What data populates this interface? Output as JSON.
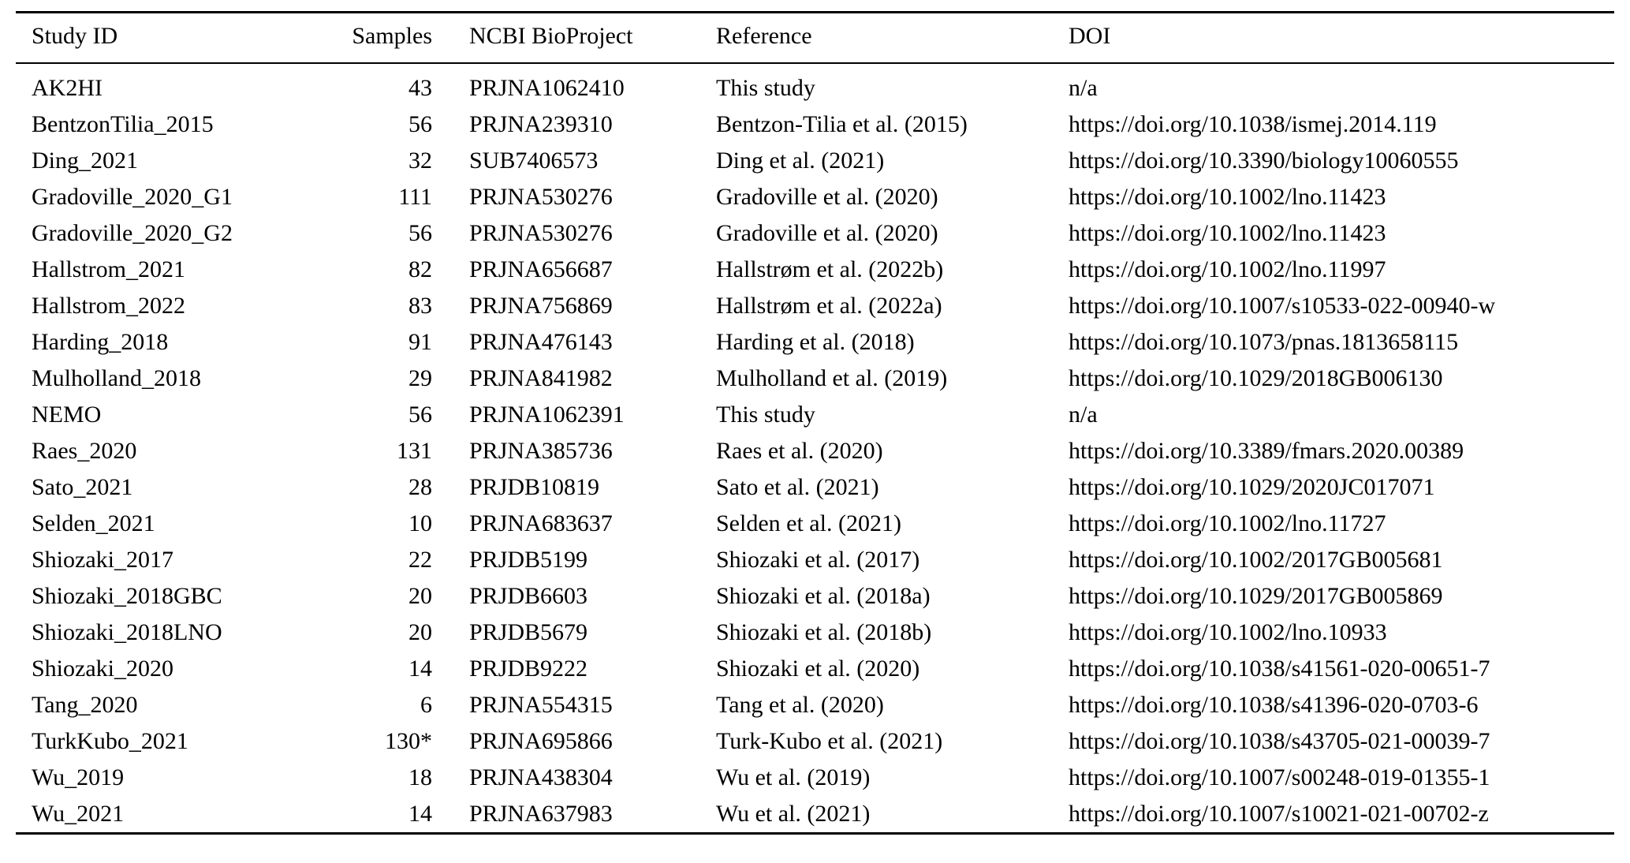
{
  "table": {
    "columns": [
      {
        "key": "study_id",
        "label": "Study ID",
        "align": "left"
      },
      {
        "key": "samples",
        "label": "Samples",
        "align": "right"
      },
      {
        "key": "bioproject",
        "label": "NCBI BioProject",
        "align": "left"
      },
      {
        "key": "reference",
        "label": "Reference",
        "align": "left"
      },
      {
        "key": "doi",
        "label": "DOI",
        "align": "left"
      }
    ],
    "rows": [
      {
        "study_id": "AK2HI",
        "samples": "43",
        "bioproject": "PRJNA1062410",
        "reference": "This study",
        "doi": "n/a"
      },
      {
        "study_id": "BentzonTilia_2015",
        "samples": "56",
        "bioproject": "PRJNA239310",
        "reference": "Bentzon-Tilia et al. (2015)",
        "doi": "https://doi.org/10.1038/ismej.2014.119"
      },
      {
        "study_id": "Ding_2021",
        "samples": "32",
        "bioproject": "SUB7406573",
        "reference": "Ding et al. (2021)",
        "doi": "https://doi.org/10.3390/biology10060555"
      },
      {
        "study_id": "Gradoville_2020_G1",
        "samples": "111",
        "bioproject": "PRJNA530276",
        "reference": "Gradoville et al. (2020)",
        "doi": "https://doi.org/10.1002/lno.11423"
      },
      {
        "study_id": "Gradoville_2020_G2",
        "samples": "56",
        "bioproject": "PRJNA530276",
        "reference": "Gradoville et al. (2020)",
        "doi": "https://doi.org/10.1002/lno.11423"
      },
      {
        "study_id": "Hallstrom_2021",
        "samples": "82",
        "bioproject": "PRJNA656687",
        "reference": "Hallstrøm et al. (2022b)",
        "doi": "https://doi.org/10.1002/lno.11997"
      },
      {
        "study_id": "Hallstrom_2022",
        "samples": "83",
        "bioproject": "PRJNA756869",
        "reference": "Hallstrøm et al. (2022a)",
        "doi": "https://doi.org/10.1007/s10533-022-00940-w"
      },
      {
        "study_id": "Harding_2018",
        "samples": "91",
        "bioproject": "PRJNA476143",
        "reference": "Harding et al. (2018)",
        "doi": "https://doi.org/10.1073/pnas.1813658115"
      },
      {
        "study_id": "Mulholland_2018",
        "samples": "29",
        "bioproject": "PRJNA841982",
        "reference": "Mulholland et al. (2019)",
        "doi": "https://doi.org/10.1029/2018GB006130"
      },
      {
        "study_id": "NEMO",
        "samples": "56",
        "bioproject": "PRJNA1062391",
        "reference": "This study",
        "doi": "n/a"
      },
      {
        "study_id": "Raes_2020",
        "samples": "131",
        "bioproject": "PRJNA385736",
        "reference": "Raes et al. (2020)",
        "doi": "https://doi.org/10.3389/fmars.2020.00389"
      },
      {
        "study_id": "Sato_2021",
        "samples": "28",
        "bioproject": "PRJDB10819",
        "reference": "Sato et al. (2021)",
        "doi": "https://doi.org/10.1029/2020JC017071"
      },
      {
        "study_id": "Selden_2021",
        "samples": "10",
        "bioproject": "PRJNA683637",
        "reference": "Selden et al. (2021)",
        "doi": "https://doi.org/10.1002/lno.11727"
      },
      {
        "study_id": "Shiozaki_2017",
        "samples": "22",
        "bioproject": "PRJDB5199",
        "reference": "Shiozaki et al. (2017)",
        "doi": "https://doi.org/10.1002/2017GB005681"
      },
      {
        "study_id": "Shiozaki_2018GBC",
        "samples": "20",
        "bioproject": "PRJDB6603",
        "reference": "Shiozaki et al. (2018a)",
        "doi": "https://doi.org/10.1029/2017GB005869"
      },
      {
        "study_id": "Shiozaki_2018LNO",
        "samples": "20",
        "bioproject": "PRJDB5679",
        "reference": "Shiozaki et al. (2018b)",
        "doi": "https://doi.org/10.1002/lno.10933"
      },
      {
        "study_id": "Shiozaki_2020",
        "samples": "14",
        "bioproject": "PRJDB9222",
        "reference": "Shiozaki et al. (2020)",
        "doi": "https://doi.org/10.1038/s41561-020-00651-7"
      },
      {
        "study_id": "Tang_2020",
        "samples": "6",
        "bioproject": "PRJNA554315",
        "reference": "Tang et al. (2020)",
        "doi": "https://doi.org/10.1038/s41396-020-0703-6"
      },
      {
        "study_id": "TurkKubo_2021",
        "samples": "130*",
        "bioproject": "PRJNA695866",
        "reference": "Turk-Kubo et al. (2021)",
        "doi": "https://doi.org/10.1038/s43705-021-00039-7"
      },
      {
        "study_id": "Wu_2019",
        "samples": "18",
        "bioproject": "PRJNA438304",
        "reference": "Wu et al. (2019)",
        "doi": "https://doi.org/10.1007/s00248-019-01355-1"
      },
      {
        "study_id": "Wu_2021",
        "samples": "14",
        "bioproject": "PRJNA637983",
        "reference": "Wu et al. (2021)",
        "doi": "https://doi.org/10.1007/s10021-021-00702-z"
      }
    ]
  }
}
